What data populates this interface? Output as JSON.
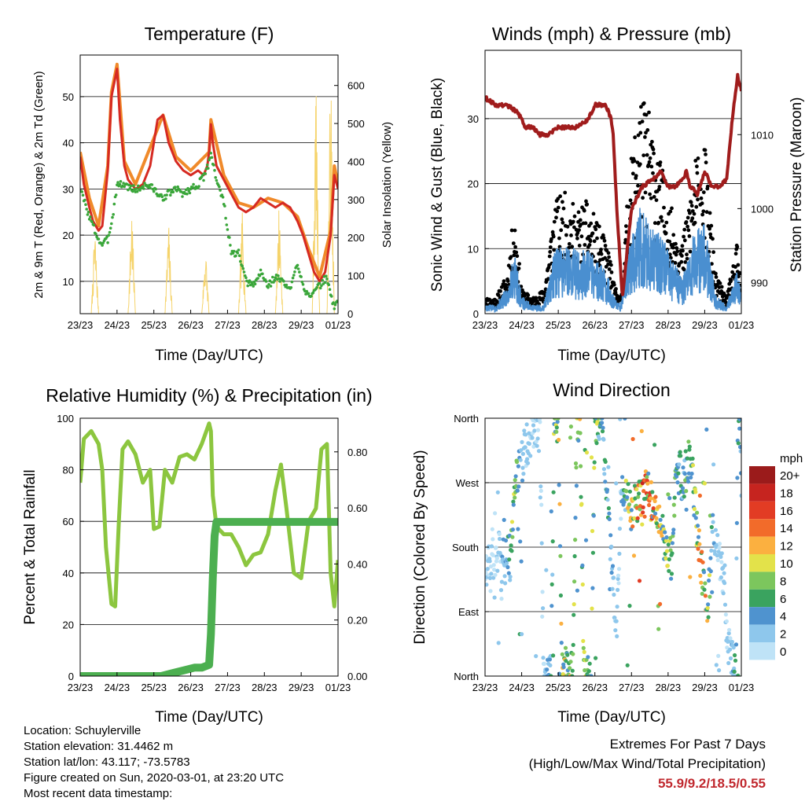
{
  "panels": {
    "temperature": {
      "title": "Temperature (F)",
      "ylabel_left": "2m & 9m T (Red, Orange) & 2m Td (Green)",
      "ylabel_right": "Solar Insolation (Yellow)",
      "xlabel": "Time (Day/UTC)",
      "xticks": [
        "23/23",
        "24/23",
        "25/23",
        "26/23",
        "27/23",
        "28/23",
        "29/23",
        "01/23"
      ],
      "yticks_left": [
        "10",
        "20",
        "30",
        "40",
        "50"
      ],
      "yticks_right": [
        "0",
        "100",
        "200",
        "300",
        "400",
        "500",
        "600"
      ]
    },
    "winds": {
      "title": "Winds (mph) & Pressure (mb)",
      "ylabel_left": "Sonic Wind & Gust (Blue, Black)",
      "ylabel_right": "Station Pressure (Maroon)",
      "xlabel": "Time (Day/UTC)",
      "xticks": [
        "23/23",
        "24/23",
        "25/23",
        "26/23",
        "27/23",
        "28/23",
        "29/23",
        "01/23"
      ],
      "yticks_left": [
        "0",
        "10",
        "20",
        "30"
      ],
      "yticks_right": [
        "990",
        "1000",
        "1010"
      ]
    },
    "humidity": {
      "title": "Relative Humidity (%) & Precipitation (in)",
      "ylabel_left": "Percent & Total Rainfall",
      "xlabel": "Time (Day/UTC)",
      "xticks": [
        "23/23",
        "24/23",
        "25/23",
        "26/23",
        "27/23",
        "28/23",
        "29/23",
        "01/23"
      ],
      "yticks_left": [
        "0",
        "20",
        "40",
        "60",
        "80",
        "100"
      ],
      "yticks_right": [
        "0.00",
        "0.20",
        "0.40",
        "0.60",
        "0.80"
      ]
    },
    "direction": {
      "title": "Wind Direction",
      "ylabel_left": "Direction (Colored By Speed)",
      "xlabel": "Time (Day/UTC)",
      "xticks": [
        "23/23",
        "24/23",
        "25/23",
        "26/23",
        "27/23",
        "28/23",
        "29/23",
        "01/23"
      ],
      "yticks_left": [
        "North",
        "East",
        "South",
        "West",
        "North"
      ],
      "legend_title": "mph",
      "legend_labels": [
        "20+",
        "18",
        "16",
        "14",
        "12",
        "10",
        "8",
        "6",
        "4",
        "2",
        "0"
      ]
    }
  },
  "colors": {
    "temp_2m": "#d62a22",
    "temp_9m": "#f08a2a",
    "dewpoint": "#3aa63a",
    "solar": "#f5d36a",
    "wind": "#4a8fd0",
    "gust": "#000000",
    "pressure": "#a01c1c",
    "rh": "#8cc63f",
    "precip": "#4caf50",
    "speed_scale": [
      "#bfe3f7",
      "#8ec7ec",
      "#4f93cf",
      "#3aa35f",
      "#7cc65d",
      "#e3e24a",
      "#fbb040",
      "#f26b2a",
      "#e23c24",
      "#c6241f",
      "#9b1b1b"
    ]
  },
  "info": {
    "location": "Location: Schuylerville",
    "elevation": "Station elevation: 31.4462 m",
    "latlon": "Station lat/lon: 43.117; -73.5783",
    "created": "Figure created on Sun, 2020-03-01, at 23:20 UTC",
    "recent": "Most recent data timestamp:",
    "extremes_title": "Extremes For Past 7 Days",
    "extremes_sub": "(High/Low/Max Wind/Total Precipitation)",
    "extremes_value": "55.9/9.2/18.5/0.55"
  },
  "chart_data": [
    {
      "type": "line",
      "title": "Temperature (F)",
      "xlabel": "Time (Day/UTC)",
      "ylabel": "2m & 9m T (Red, Orange) & 2m Td (Green)",
      "y2label": "Solar Insolation (Yellow)",
      "xlim": [
        0,
        7
      ],
      "ylim": [
        3,
        59
      ],
      "y2lim": [
        0,
        680
      ],
      "series": [
        {
          "name": "2m T",
          "axis": "left",
          "x": [
            0,
            0.1,
            0.25,
            0.35,
            0.5,
            0.6,
            0.75,
            0.85,
            1.0,
            1.08,
            1.2,
            1.3,
            1.5,
            1.7,
            1.9,
            2.0,
            2.1,
            2.25,
            2.4,
            2.6,
            2.8,
            3.0,
            3.2,
            3.35,
            3.45,
            3.5,
            3.55,
            3.6,
            3.7,
            3.9,
            4.1,
            4.3,
            4.5,
            4.7,
            4.9,
            5.1,
            5.3,
            5.5,
            5.7,
            5.9,
            6.05,
            6.2,
            6.35,
            6.5,
            6.65,
            6.8,
            6.9,
            7.0
          ],
          "values": [
            37,
            31,
            26,
            23,
            21,
            22,
            34,
            50,
            56,
            45,
            35,
            32,
            30,
            31,
            35,
            40,
            45,
            46,
            40,
            36,
            34,
            33,
            34,
            33,
            35,
            38,
            44,
            40,
            35,
            32,
            29,
            26,
            25,
            26,
            28,
            27,
            26,
            27,
            26,
            23,
            20,
            16,
            12,
            10,
            12,
            20,
            33,
            30
          ]
        },
        {
          "name": "9m T",
          "axis": "left",
          "x": [
            0,
            0.25,
            0.5,
            0.75,
            0.85,
            1.0,
            1.2,
            1.5,
            2.0,
            2.25,
            2.6,
            3.0,
            3.5,
            3.55,
            3.9,
            4.3,
            4.7,
            5.1,
            5.5,
            5.9,
            6.2,
            6.5,
            6.8,
            6.9,
            7.0
          ],
          "values": [
            38,
            28,
            22,
            35,
            51,
            57,
            36,
            31,
            41,
            46,
            37,
            34,
            38,
            45,
            33,
            27,
            26,
            28,
            27,
            24,
            17,
            11,
            21,
            35,
            31
          ]
        },
        {
          "name": "2m Td",
          "axis": "left",
          "x": [
            0,
            0.25,
            0.5,
            0.6,
            0.75,
            0.9,
            1.0,
            1.2,
            1.4,
            1.6,
            1.8,
            2.0,
            2.2,
            2.4,
            2.6,
            2.8,
            3.0,
            3.2,
            3.4,
            3.5,
            3.55,
            3.7,
            3.9,
            4.1,
            4.3,
            4.5,
            4.7,
            4.9,
            5.1,
            5.3,
            5.5,
            5.7,
            5.9,
            6.1,
            6.3,
            6.5,
            6.7,
            6.8,
            6.9,
            7.0
          ],
          "values": [
            30,
            24,
            19,
            18,
            19,
            25,
            31,
            31,
            30,
            30,
            31,
            30,
            28,
            29,
            30,
            29,
            30,
            31,
            33,
            36,
            38,
            32,
            27,
            16,
            16,
            10,
            9,
            12,
            9,
            11,
            10,
            8,
            14,
            8,
            7,
            9,
            11,
            7,
            4,
            7
          ]
        },
        {
          "name": "Solar Insolation",
          "axis": "right",
          "x": [
            0.3,
            0.4,
            0.5,
            1.3,
            1.4,
            1.5,
            2.3,
            2.4,
            2.5,
            3.3,
            3.4,
            3.5,
            4.3,
            4.4,
            4.5,
            5.3,
            5.4,
            5.5,
            6.3,
            6.4,
            6.5,
            6.7,
            6.8,
            6.9
          ],
          "values": [
            0,
            240,
            0,
            0,
            300,
            0,
            0,
            250,
            0,
            0,
            190,
            0,
            0,
            280,
            0,
            0,
            310,
            0,
            0,
            620,
            0,
            0,
            680,
            0
          ]
        }
      ]
    },
    {
      "type": "line",
      "title": "Winds (mph) & Pressure (mb)",
      "xlabel": "Time (Day/UTC)",
      "ylabel": "Sonic Wind & Gust (Blue, Black)",
      "y2label": "Station Pressure (Maroon)",
      "xlim": [
        0,
        7
      ],
      "ylim": [
        0,
        40.5
      ],
      "y2lim": [
        985.8,
        1021.4
      ],
      "series": [
        {
          "name": "Sonic Wind",
          "axis": "left",
          "x": [
            0,
            0.3,
            0.6,
            0.8,
            1.0,
            1.3,
            1.6,
            1.9,
            2.2,
            2.5,
            2.8,
            3.1,
            3.4,
            3.5,
            3.7,
            3.9,
            4.2,
            4.5,
            4.8,
            5.1,
            5.4,
            5.7,
            6.0,
            6.3,
            6.6,
            6.9,
            7.0
          ],
          "values": [
            1,
            1,
            3,
            7,
            2,
            1,
            1,
            7,
            8,
            7,
            7,
            6,
            4,
            2,
            1,
            8,
            12,
            10,
            9,
            6,
            4,
            9,
            10,
            2,
            1,
            5,
            2
          ]
        },
        {
          "name": "Gust",
          "axis": "left",
          "x": [
            0,
            0.3,
            0.6,
            0.8,
            1.0,
            1.3,
            1.6,
            1.9,
            2.2,
            2.5,
            2.8,
            3.1,
            3.4,
            3.5,
            3.7,
            3.9,
            4.2,
            4.5,
            4.8,
            5.1,
            5.4,
            5.7,
            6.0,
            6.3,
            6.6,
            6.9,
            7.0
          ],
          "values": [
            2,
            2,
            5,
            13,
            3,
            2,
            3,
            14,
            15,
            13,
            14,
            11,
            8,
            4,
            2,
            15,
            28,
            25,
            19,
            13,
            9,
            19,
            21,
            5,
            2,
            9,
            3
          ]
        },
        {
          "name": "Station Pressure",
          "axis": "right",
          "x": [
            0,
            0.3,
            0.6,
            0.9,
            1.1,
            1.3,
            1.5,
            1.7,
            2.0,
            2.3,
            2.5,
            2.8,
            3.0,
            3.1,
            3.3,
            3.45,
            3.5,
            3.6,
            3.75,
            4.0,
            4.3,
            4.6,
            4.8,
            5.0,
            5.2,
            5.4,
            5.5,
            5.6,
            5.8,
            6.0,
            6.2,
            6.4,
            6.6,
            6.75,
            6.9,
            7.0
          ],
          "values": [
            1015,
            1014,
            1014,
            1013,
            1011,
            1011,
            1010,
            1010,
            1011,
            1011,
            1011,
            1012,
            1014,
            1014,
            1014,
            1012,
            1010,
            1000,
            988,
            1000,
            1003,
            1004,
            1005,
            1003,
            1003,
            1004,
            1005,
            1003,
            1002,
            1005,
            1003,
            1003,
            1004,
            1012,
            1018,
            1016
          ]
        }
      ]
    },
    {
      "type": "line",
      "title": "Relative Humidity (%) & Precipitation (in)",
      "xlabel": "Time (Day/UTC)",
      "ylabel": "Percent & Total Rainfall",
      "xlim": [
        0,
        7
      ],
      "ylim": [
        0,
        100
      ],
      "y2lim": [
        0,
        0.92
      ],
      "series": [
        {
          "name": "Relative Humidity",
          "axis": "left",
          "x": [
            0,
            0.1,
            0.3,
            0.5,
            0.6,
            0.7,
            0.85,
            0.95,
            1.05,
            1.15,
            1.3,
            1.5,
            1.7,
            1.9,
            2.0,
            2.15,
            2.3,
            2.5,
            2.7,
            2.9,
            3.1,
            3.3,
            3.45,
            3.5,
            3.55,
            3.6,
            3.7,
            3.9,
            4.1,
            4.3,
            4.5,
            4.7,
            4.9,
            5.1,
            5.3,
            5.45,
            5.6,
            5.8,
            6.0,
            6.2,
            6.4,
            6.55,
            6.7,
            6.8,
            6.9,
            7.0
          ],
          "values": [
            75,
            92,
            95,
            90,
            80,
            50,
            28,
            27,
            60,
            88,
            91,
            86,
            75,
            80,
            57,
            58,
            80,
            75,
            85,
            86,
            84,
            90,
            96,
            98,
            95,
            70,
            58,
            55,
            55,
            50,
            43,
            47,
            48,
            55,
            72,
            82,
            65,
            40,
            38,
            60,
            65,
            88,
            90,
            40,
            27,
            45
          ]
        },
        {
          "name": "Total Precipitation",
          "axis": "right",
          "x": [
            0,
            2.2,
            2.5,
            2.8,
            3.1,
            3.3,
            3.5,
            3.55,
            3.6,
            3.65,
            3.7,
            7.0
          ],
          "values": [
            0,
            0,
            0.01,
            0.02,
            0.03,
            0.03,
            0.04,
            0.15,
            0.35,
            0.5,
            0.55,
            0.55
          ]
        }
      ]
    },
    {
      "type": "scatter",
      "title": "Wind Direction",
      "xlabel": "Time (Day/UTC)",
      "ylabel": "Direction (Colored By Speed)",
      "xlim": [
        0,
        7
      ],
      "ylim": [
        0,
        360
      ],
      "yticks": [
        0,
        90,
        180,
        270,
        360
      ],
      "series": [
        {
          "name": "Wind Direction",
          "x": [
            0.05,
            0.1,
            0.15,
            0.2,
            0.25,
            0.3,
            0.35,
            0.4,
            0.45,
            0.5,
            0.55,
            0.6,
            0.65,
            0.7,
            0.75,
            0.8,
            0.9,
            1.0,
            1.1,
            1.2,
            1.3,
            1.4,
            1.5,
            1.6,
            1.7,
            1.8,
            1.9,
            2.0,
            2.1,
            2.2,
            2.3,
            2.4,
            2.5,
            2.6,
            2.7,
            2.8,
            2.9,
            3.0,
            3.1,
            3.2,
            3.3,
            3.4,
            3.5,
            3.55,
            3.6,
            3.7,
            3.75,
            3.8,
            3.9,
            4.0,
            4.1,
            4.2,
            4.3,
            4.4,
            4.5,
            4.6,
            4.7,
            4.8,
            4.9,
            5.0,
            5.1,
            5.2,
            5.3,
            5.4,
            5.5,
            5.6,
            5.7,
            5.8,
            5.9,
            6.0,
            6.1,
            6.2,
            6.3,
            6.4,
            6.5,
            6.6,
            6.7,
            6.8,
            6.85,
            6.9,
            6.95,
            7.0
          ],
          "values": [
            150,
            170,
            140,
            190,
            130,
            160,
            180,
            200,
            120,
            170,
            150,
            180,
            170,
            160,
            220,
            260,
            280,
            300,
            320,
            330,
            345,
            350,
            355,
            10,
            8,
            12,
            358,
            352,
            5,
            10,
            7,
            3,
            356,
            358,
            5,
            8,
            2,
            352,
            350,
            355,
            280,
            200,
            120,
            60,
            80,
            230,
            270,
            260,
            250,
            230,
            240,
            250,
            240,
            260,
            250,
            240,
            220,
            200,
            190,
            170,
            160,
            280,
            290,
            270,
            290,
            310,
            260,
            200,
            150,
            120,
            100,
            200,
            180,
            160,
            140,
            60,
            30,
            20,
            10,
            330,
            350,
            280
          ]
        }
      ]
    }
  ]
}
